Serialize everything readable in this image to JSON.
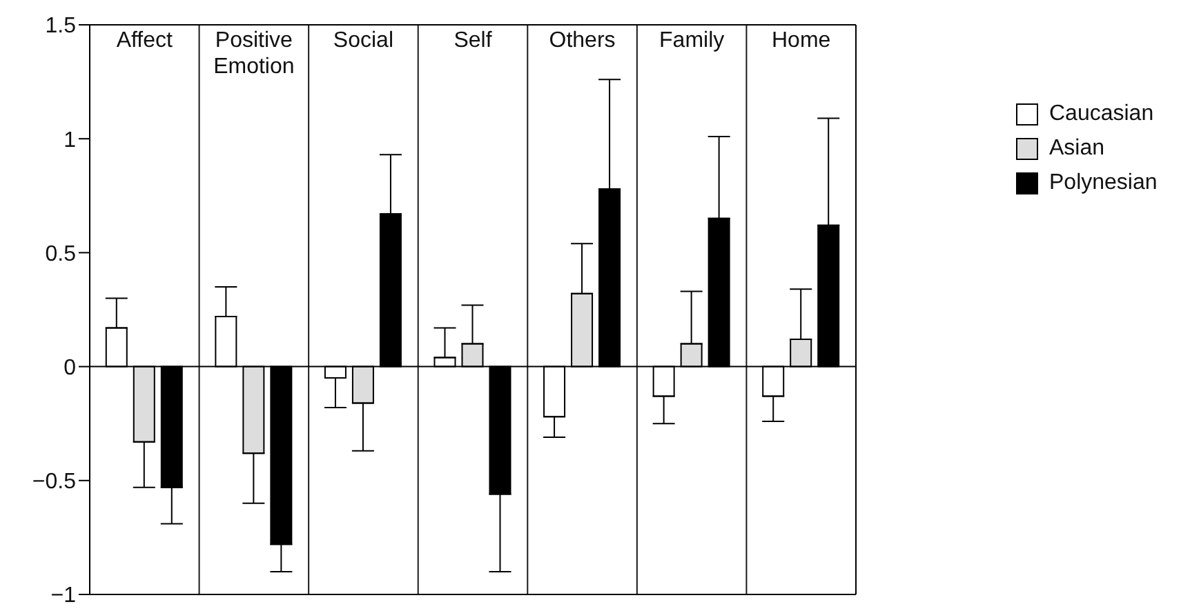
{
  "chart_data": {
    "type": "bar",
    "categories": [
      "Affect",
      "Positive Emotion",
      "Social",
      "Self",
      "Others",
      "Family",
      "Home"
    ],
    "series": [
      {
        "name": "Caucasian",
        "color": "#ffffff",
        "values": [
          0.17,
          0.22,
          -0.05,
          0.04,
          -0.22,
          -0.13,
          -0.13
        ],
        "errors": [
          [
            0.17,
            0.3
          ],
          [
            0.22,
            0.35
          ],
          [
            -0.18,
            -0.05
          ],
          [
            0.04,
            0.17
          ],
          [
            -0.31,
            -0.22
          ],
          [
            -0.25,
            -0.13
          ],
          [
            -0.24,
            -0.13
          ]
        ]
      },
      {
        "name": "Asian",
        "color": "#dddddd",
        "values": [
          -0.33,
          -0.38,
          -0.16,
          0.1,
          0.32,
          0.1,
          0.12
        ],
        "errors": [
          [
            -0.53,
            -0.33
          ],
          [
            -0.6,
            -0.38
          ],
          [
            -0.37,
            -0.16
          ],
          [
            0.1,
            0.27
          ],
          [
            0.32,
            0.54
          ],
          [
            0.1,
            0.33
          ],
          [
            0.12,
            0.34
          ]
        ]
      },
      {
        "name": "Polynesian",
        "color": "#000000",
        "values": [
          -0.53,
          -0.78,
          0.67,
          -0.56,
          0.78,
          0.65,
          0.62
        ],
        "errors": [
          [
            -0.69,
            -0.53
          ],
          [
            -0.9,
            -0.78
          ],
          [
            0.67,
            0.93
          ],
          [
            -0.9,
            -0.56
          ],
          [
            0.78,
            1.26
          ],
          [
            0.65,
            1.01
          ],
          [
            0.62,
            1.09
          ]
        ]
      }
    ],
    "ylim": [
      -1,
      1.5
    ],
    "yticks": [
      {
        "value": -1,
        "label": "−1"
      },
      {
        "value": -0.5,
        "label": "−0.5"
      },
      0,
      0.5,
      1,
      1.5
    ],
    "ref_lines": [
      {
        "axis": "y",
        "value": 0
      }
    ],
    "grid": "x",
    "legend": "right"
  }
}
